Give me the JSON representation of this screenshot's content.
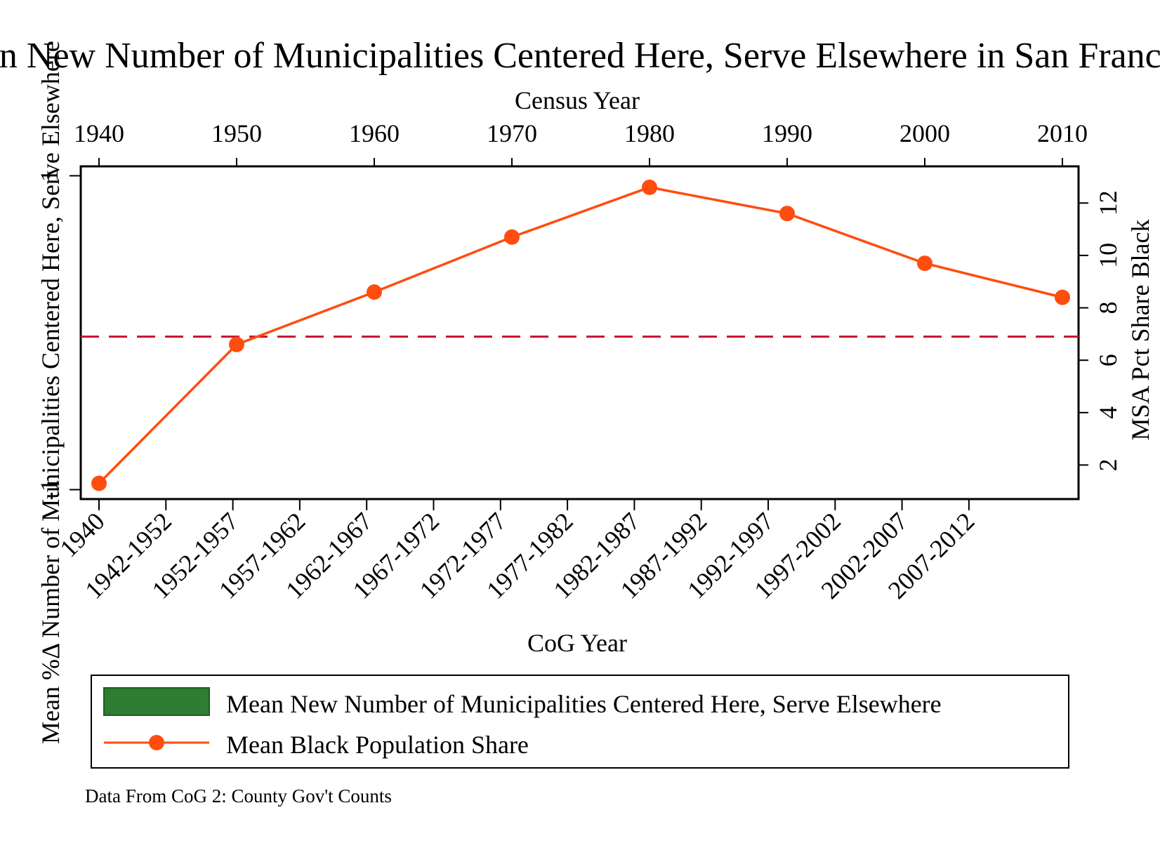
{
  "chart_data": {
    "type": "line",
    "title": "Mean New Number of Municipalities Centered Here, Serve Elsewhere in San Francisco",
    "top_axis": {
      "label": "Census Year",
      "ticks": [
        "1940",
        "1950",
        "1960",
        "1970",
        "1980",
        "1990",
        "2000",
        "2010"
      ]
    },
    "bottom_axis": {
      "label": "CoG Year",
      "ticks": [
        "1940",
        "1942-1952",
        "1952-1957",
        "1957-1962",
        "1962-1967",
        "1967-1972",
        "1972-1977",
        "1977-1982",
        "1982-1987",
        "1987-1992",
        "1992-1997",
        "1997-2002",
        "2002-2007",
        "2007-2012"
      ]
    },
    "left_axis": {
      "label": "Mean %Δ Number of Municipalities Centered Here, Serve Elsewhere",
      "ticks": [
        "-1",
        "1"
      ],
      "ylim": [
        -1.06,
        1.06
      ]
    },
    "right_axis": {
      "label": "MSA Pct Share Black",
      "ticks": [
        "2",
        "4",
        "6",
        "8",
        "10",
        "12"
      ],
      "ylim": [
        0.7,
        13.4
      ]
    },
    "series": [
      {
        "name": "Mean Black Population Share",
        "color": "#ff4d0f",
        "axis": "right",
        "x": [
          1940,
          1950,
          1960,
          1970,
          1980,
          1990,
          2000,
          2010
        ],
        "values": [
          1.3,
          6.6,
          8.6,
          10.7,
          12.6,
          11.6,
          9.7,
          8.4
        ]
      }
    ],
    "reference_line": {
      "axis": "right",
      "value": 6.9,
      "color": "#c8102e",
      "style": "dashed"
    },
    "legend": {
      "position": "bottom",
      "entries": [
        {
          "label": "Mean New Number of Municipalities Centered Here, Serve Elsewhere",
          "color": "#2e7d32",
          "marker": "box"
        },
        {
          "label": "Mean Black Population Share",
          "color": "#ff4d0f",
          "marker": "line-dot"
        }
      ]
    },
    "note": "Data From CoG 2: County Gov't Counts",
    "grid": false
  }
}
